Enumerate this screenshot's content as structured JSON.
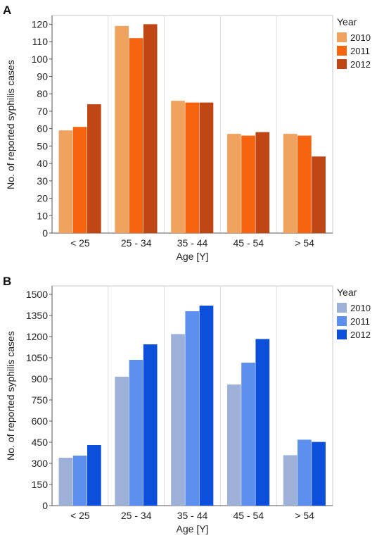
{
  "chart_data": [
    {
      "panel_label": "A",
      "type": "bar",
      "title": "",
      "xlabel": "Age [Y]",
      "ylabel": "No. of reported syphilis cases",
      "categories": [
        "< 25",
        "25 - 34",
        "35 - 44",
        "45 - 54",
        "> 54"
      ],
      "ylim": [
        0,
        125
      ],
      "yticks": [
        0,
        10,
        20,
        30,
        40,
        50,
        60,
        70,
        80,
        90,
        100,
        110,
        120
      ],
      "grid": "vertical",
      "legend_title": "Year",
      "legend_position": "right-top",
      "series": [
        {
          "name": "2010",
          "color": "#f0a35e",
          "values": [
            59,
            119,
            76,
            57,
            57
          ]
        },
        {
          "name": "2011",
          "color": "#f7640f",
          "values": [
            61,
            112,
            75,
            56,
            56
          ]
        },
        {
          "name": "2012",
          "color": "#bf4716",
          "values": [
            74,
            120,
            75,
            58,
            44
          ]
        }
      ]
    },
    {
      "panel_label": "B",
      "type": "bar",
      "title": "",
      "xlabel": "Age [Y]",
      "ylabel": "No. of reported syphilis cases",
      "categories": [
        "< 25",
        "25 - 34",
        "35 - 44",
        "45 - 54",
        "> 54"
      ],
      "ylim": [
        0,
        1560
      ],
      "yticks": [
        0,
        150,
        300,
        450,
        600,
        750,
        900,
        1050,
        1200,
        1350,
        1500
      ],
      "grid": "vertical",
      "legend_title": "Year",
      "legend_position": "right-top",
      "series": [
        {
          "name": "2010",
          "color": "#9db1d8",
          "values": [
            340,
            915,
            1218,
            860,
            358
          ]
        },
        {
          "name": "2011",
          "color": "#5d8fef",
          "values": [
            355,
            1035,
            1380,
            1015,
            468
          ]
        },
        {
          "name": "2012",
          "color": "#0b4fdb",
          "values": [
            430,
            1145,
            1420,
            1183,
            452
          ]
        }
      ]
    }
  ]
}
